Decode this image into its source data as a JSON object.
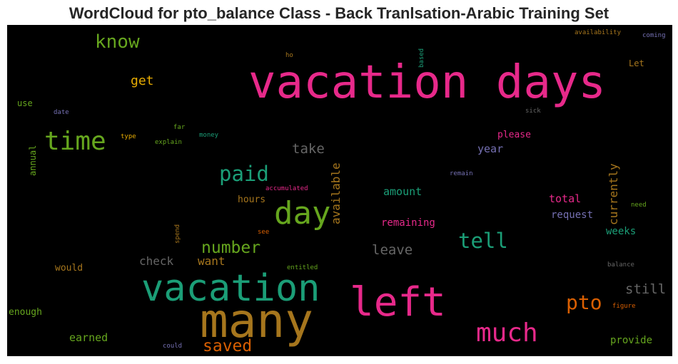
{
  "title": "WordCloud for pto_balance Class - Back Tranlsation-Arabic Training Set",
  "palette": {
    "pink": "#e7298a",
    "green": "#66a61e",
    "teal": "#1b9e77",
    "gold": "#e6ab02",
    "brown": "#a6761d",
    "orange": "#d95f02",
    "purple": "#7570b3",
    "gray": "#666666"
  },
  "words": [
    {
      "id": "vacation-days",
      "text": "vacation days",
      "color": "#e7298a"
    },
    {
      "id": "many",
      "text": "many",
      "color": "#a6761d"
    },
    {
      "id": "vacation",
      "text": "vacation",
      "color": "#1b9e77"
    },
    {
      "id": "left",
      "text": "left",
      "color": "#e7298a"
    },
    {
      "id": "day",
      "text": "day",
      "color": "#66a61e"
    },
    {
      "id": "time",
      "text": "time",
      "color": "#66a61e"
    },
    {
      "id": "much",
      "text": "much",
      "color": "#e7298a"
    },
    {
      "id": "know",
      "text": "know",
      "color": "#66a61e"
    },
    {
      "id": "paid",
      "text": "paid",
      "color": "#1b9e77"
    },
    {
      "id": "tell",
      "text": "tell",
      "color": "#1b9e77"
    },
    {
      "id": "pto",
      "text": "pto",
      "color": "#d95f02"
    },
    {
      "id": "number",
      "text": "number",
      "color": "#66a61e"
    },
    {
      "id": "saved",
      "text": "saved",
      "color": "#d95f02"
    },
    {
      "id": "get",
      "text": "get",
      "color": "#e6ab02"
    },
    {
      "id": "take",
      "text": "take",
      "color": "#666666"
    },
    {
      "id": "leave",
      "text": "leave",
      "color": "#666666"
    },
    {
      "id": "still",
      "text": "still",
      "color": "#666666"
    },
    {
      "id": "available",
      "text": "available",
      "color": "#a6761d"
    },
    {
      "id": "currently",
      "text": "currently",
      "color": "#a6761d"
    },
    {
      "id": "check",
      "text": "check",
      "color": "#666666"
    },
    {
      "id": "want",
      "text": "want",
      "color": "#a6761d"
    },
    {
      "id": "year",
      "text": "year",
      "color": "#7570b3"
    },
    {
      "id": "amount",
      "text": "amount",
      "color": "#1b9e77"
    },
    {
      "id": "total",
      "text": "total",
      "color": "#e7298a"
    },
    {
      "id": "remaining",
      "text": "remaining",
      "color": "#e7298a"
    },
    {
      "id": "request",
      "text": "request",
      "color": "#7570b3"
    },
    {
      "id": "weeks",
      "text": "weeks",
      "color": "#1b9e77"
    },
    {
      "id": "earned",
      "text": "earned",
      "color": "#66a61e"
    },
    {
      "id": "provide",
      "text": "provide",
      "color": "#66a61e"
    },
    {
      "id": "please",
      "text": "please",
      "color": "#e7298a"
    },
    {
      "id": "hours",
      "text": "hours",
      "color": "#a6761d"
    },
    {
      "id": "would",
      "text": "would",
      "color": "#a6761d"
    },
    {
      "id": "enough",
      "text": "enough",
      "color": "#66a61e"
    },
    {
      "id": "use",
      "text": "use",
      "color": "#66a61e"
    },
    {
      "id": "annual",
      "text": "annual",
      "color": "#66a61e"
    },
    {
      "id": "let",
      "text": "Let",
      "color": "#a6761d"
    },
    {
      "id": "accumulated",
      "text": "accumulated",
      "color": "#e7298a"
    },
    {
      "id": "remain",
      "text": "remain",
      "color": "#7570b3"
    },
    {
      "id": "date",
      "text": "date",
      "color": "#7570b3"
    },
    {
      "id": "type",
      "text": "type",
      "color": "#e6ab02"
    },
    {
      "id": "explain",
      "text": "explain",
      "color": "#66a61e"
    },
    {
      "id": "far",
      "text": "far",
      "color": "#66a61e"
    },
    {
      "id": "money",
      "text": "money",
      "color": "#1b9e77"
    },
    {
      "id": "ho",
      "text": "ho",
      "color": "#a6761d"
    },
    {
      "id": "based",
      "text": "based",
      "color": "#1b9e77"
    },
    {
      "id": "availability",
      "text": "availability",
      "color": "#a6761d"
    },
    {
      "id": "coming",
      "text": "coming",
      "color": "#7570b3"
    },
    {
      "id": "sick",
      "text": "sick",
      "color": "#666666"
    },
    {
      "id": "need",
      "text": "need",
      "color": "#66a61e"
    },
    {
      "id": "balance",
      "text": "balance",
      "color": "#666666"
    },
    {
      "id": "figure",
      "text": "figure",
      "color": "#d95f02"
    },
    {
      "id": "entitled",
      "text": "entitled",
      "color": "#66a61e"
    },
    {
      "id": "spend",
      "text": "spend",
      "color": "#a6761d"
    },
    {
      "id": "see",
      "text": "see",
      "color": "#d95f02"
    },
    {
      "id": "could",
      "text": "could",
      "color": "#7570b3"
    }
  ]
}
